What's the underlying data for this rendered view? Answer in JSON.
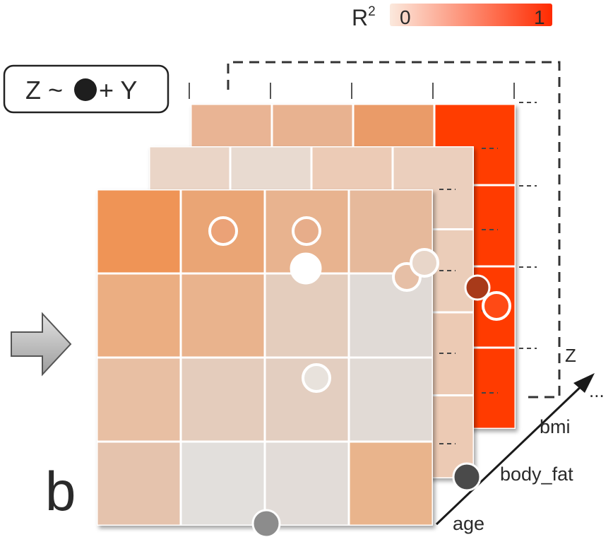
{
  "diagram": {
    "panel_label": "b",
    "formula": {
      "left": "Z ~",
      "right": "+ Y"
    },
    "colorbar": {
      "label_base": "R",
      "label_sup": "2",
      "min_label": "0",
      "max_label": "1",
      "color_min": "#fbe7da",
      "color_max": "#ff2a00"
    },
    "axis_z_label": "Z",
    "ellipsis": "...",
    "depth_labels": [
      "age",
      "body_fat",
      "bmi"
    ],
    "layers": [
      {
        "name": "bmi",
        "cells": [
          "#e9b494",
          "#e8b290",
          "#ea9b68",
          "#ff3c00",
          "#ff3a00",
          "#ff3a00",
          "#ff3a00",
          "#ff3a00",
          "#ff3a00",
          "#ff3a00",
          "#ff3a00",
          "#ff3a00",
          "#ff3a00",
          "#ff3a00",
          "#ff3a00",
          "#ff3a00"
        ]
      },
      {
        "name": "body_fat",
        "cells": [
          "#ead5c7",
          "#e8dad0",
          "#eccbb6",
          "#ebcfbd",
          "#ebcdb9",
          "#ebcdb9",
          "#ebcdb9",
          "#ebcdb9",
          "#eccab4",
          "#eccab4",
          "#eccab4",
          "#eccab4",
          "#eccab4",
          "#eccab4",
          "#eccab4",
          "#eccab4"
        ]
      },
      {
        "name": "age",
        "cells": [
          "#ef9456",
          "#eaa574",
          "#e8b38f",
          "#e6b99b",
          "#ebae82",
          "#e9b38d",
          "#e4cdbd",
          "#e0dad6",
          "#e8bfa3",
          "#e4ccbc",
          "#e3cec0",
          "#e1dad5",
          "#e5c3ad",
          "#e2dfdc",
          "#e2dcd8",
          "#e9b48c"
        ]
      }
    ],
    "markers": [
      {
        "name": "hollow",
        "fill": "#eba277"
      },
      {
        "name": "hollow",
        "fill": "#e7ad8a"
      },
      {
        "name": "solid",
        "fill": "#ffffff"
      },
      {
        "name": "hollow",
        "fill": "#e6bfa6"
      },
      {
        "name": "hollow",
        "fill": "#e8d6c9"
      },
      {
        "name": "solid",
        "fill": "#a83a1a"
      },
      {
        "name": "hollow",
        "fill": "#ff4a15"
      },
      {
        "name": "hollow",
        "fill": "#e8e2dc"
      },
      {
        "name": "solid",
        "fill": "#4a4a4a"
      },
      {
        "name": "solid",
        "fill": "#8c8c8c"
      }
    ]
  }
}
